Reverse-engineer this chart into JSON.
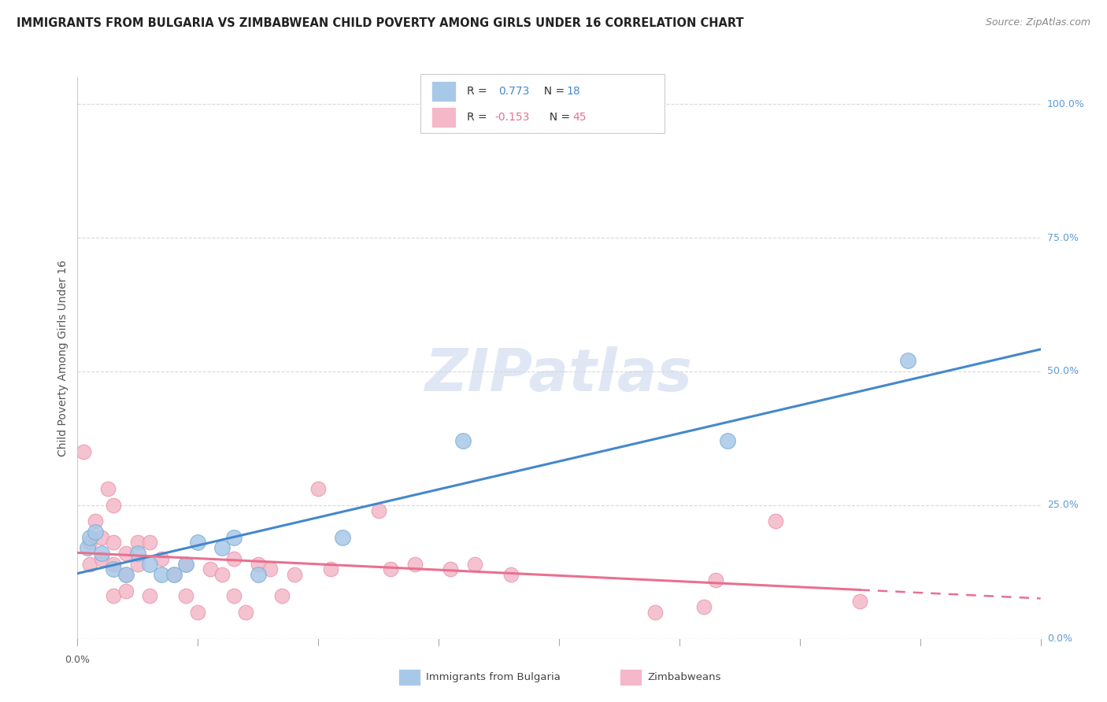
{
  "title": "IMMIGRANTS FROM BULGARIA VS ZIMBABWEAN CHILD POVERTY AMONG GIRLS UNDER 16 CORRELATION CHART",
  "source": "Source: ZipAtlas.com",
  "ylabel": "Child Poverty Among Girls Under 16",
  "ytick_values": [
    0.0,
    0.25,
    0.5,
    0.75,
    1.0
  ],
  "ytick_labels": [
    "0.0%",
    "25.0%",
    "50.0%",
    "75.0%",
    "100.0%"
  ],
  "xlim": [
    0.0,
    0.08
  ],
  "ylim": [
    0.0,
    1.05
  ],
  "legend_label1": "Immigrants from Bulgaria",
  "legend_label2": "Zimbabweans",
  "blue_color": "#a8c8e8",
  "pink_color": "#f4b8c8",
  "blue_scatter_edge": "#7aafd4",
  "pink_scatter_edge": "#e898b0",
  "blue_line_color": "#4488cc",
  "pink_line_color": "#e87090",
  "watermark": "ZIPatlas",
  "bulgaria_x": [
    0.0008,
    0.001,
    0.0015,
    0.002,
    0.003,
    0.004,
    0.005,
    0.006,
    0.007,
    0.008,
    0.009,
    0.01,
    0.012,
    0.013,
    0.015,
    0.022,
    0.032,
    0.054,
    0.069
  ],
  "bulgaria_y": [
    0.17,
    0.19,
    0.2,
    0.16,
    0.13,
    0.12,
    0.16,
    0.14,
    0.12,
    0.12,
    0.14,
    0.18,
    0.17,
    0.19,
    0.12,
    0.19,
    0.37,
    0.37,
    0.52
  ],
  "zimbabwe_x": [
    0.0005,
    0.001,
    0.001,
    0.0015,
    0.002,
    0.002,
    0.0025,
    0.003,
    0.003,
    0.003,
    0.003,
    0.004,
    0.004,
    0.004,
    0.005,
    0.005,
    0.006,
    0.006,
    0.007,
    0.008,
    0.009,
    0.009,
    0.01,
    0.011,
    0.012,
    0.013,
    0.013,
    0.014,
    0.015,
    0.016,
    0.017,
    0.018,
    0.02,
    0.021,
    0.025,
    0.026,
    0.028,
    0.031,
    0.033,
    0.036,
    0.048,
    0.052,
    0.053,
    0.058,
    0.065
  ],
  "zimbabwe_y": [
    0.35,
    0.18,
    0.14,
    0.22,
    0.19,
    0.15,
    0.28,
    0.08,
    0.14,
    0.18,
    0.25,
    0.12,
    0.16,
    0.09,
    0.14,
    0.18,
    0.08,
    0.18,
    0.15,
    0.12,
    0.14,
    0.08,
    0.05,
    0.13,
    0.12,
    0.15,
    0.08,
    0.05,
    0.14,
    0.13,
    0.08,
    0.12,
    0.28,
    0.13,
    0.24,
    0.13,
    0.14,
    0.13,
    0.14,
    0.12,
    0.05,
    0.06,
    0.11,
    0.22,
    0.07
  ],
  "bg_color": "#ffffff",
  "grid_color": "#d8d8d8",
  "title_fontsize": 10.5,
  "source_fontsize": 9,
  "ylabel_fontsize": 10,
  "tick_fontsize": 9,
  "right_axis_color": "#5b9bd5",
  "legend_blue_text_color": "#4488cc",
  "legend_pink_text_color": "#e87090",
  "legend_dark_color": "#333333"
}
